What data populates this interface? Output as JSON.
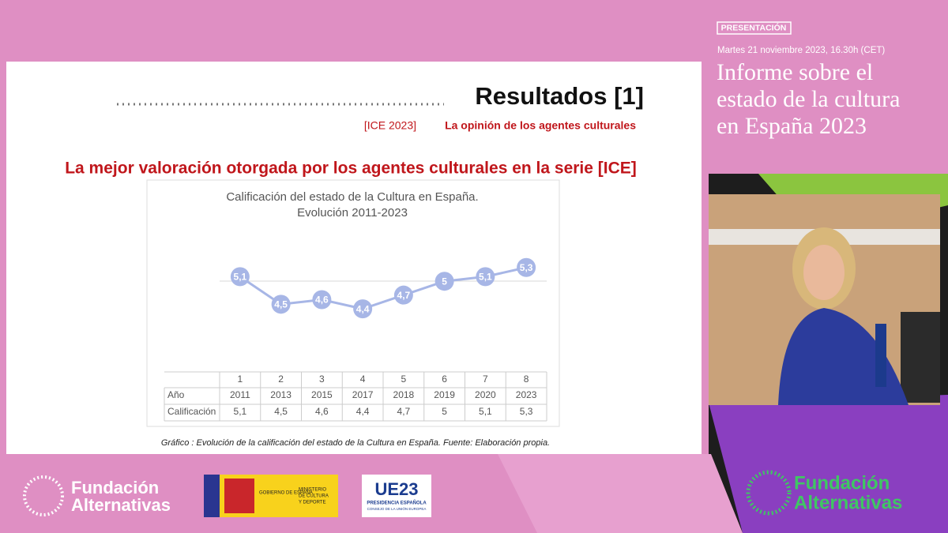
{
  "badge": "PRESENTACIÓN",
  "date": "Martes 21 noviembre 2023, 16.30h (CET)",
  "event_title": [
    "Informe sobre el",
    "estado de la cultura",
    "en España 2023"
  ],
  "slide": {
    "title": "Resultados [1]",
    "tag": "[ICE 2023]",
    "subtitle": "La opinión de los agentes culturales",
    "headline": "La mejor valoración otorgada por los agentes culturales en la serie [ICE]",
    "caption": "Gráfico : Evolución de la calificación del estado de la Cultura en España. Fuente: Elaboración propia."
  },
  "chart_data": {
    "type": "line",
    "title": [
      "Calificación del estado de la Cultura en España.",
      "Evolución 2011-2023"
    ],
    "categories": [
      "1",
      "2",
      "3",
      "4",
      "5",
      "6",
      "7",
      "8"
    ],
    "row_labels": [
      "Año",
      "Calificación"
    ],
    "years": [
      "2011",
      "2013",
      "2015",
      "2017",
      "2018",
      "2019",
      "2020",
      "2023"
    ],
    "values": [
      5.1,
      4.5,
      4.6,
      4.4,
      4.7,
      5,
      5.1,
      5.3
    ],
    "value_labels": [
      "5,1",
      "4,5",
      "4,6",
      "4,4",
      "4,7",
      "5",
      "5,1",
      "5,3"
    ],
    "color": "#a7b6e6",
    "ylim": [
      3.2,
      6
    ]
  },
  "logos": {
    "fundacion": [
      "Fundación",
      "Alternativas"
    ],
    "gobierno": "GOBIERNO DE ESPAÑA",
    "ministerio": [
      "MINISTERIO",
      "DE CULTURA",
      "Y DEPORTE"
    ],
    "ue": "UE23",
    "presidencia": "PRESIDENCIA ESPAÑOLA",
    "consejo": "CONSEJO DE LA UNIÓN EUROPEA"
  }
}
